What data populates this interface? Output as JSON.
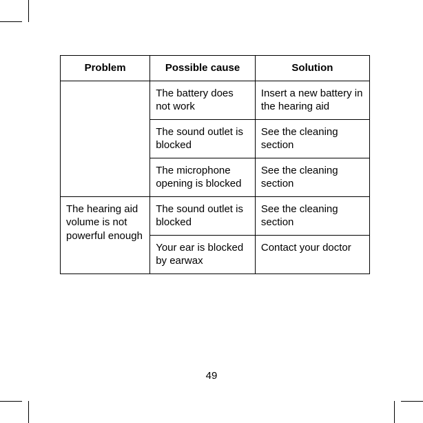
{
  "table": {
    "headers": {
      "problem": "Problem",
      "cause": "Possible cause",
      "solution": "Solution"
    },
    "rows": [
      {
        "problem": "",
        "cause": "The battery does not work",
        "solution": "Insert a new battery in the hearing aid"
      },
      {
        "cause": "The sound outlet is blocked",
        "solution": "See the cleaning section"
      },
      {
        "cause": "The microphone opening is blocked",
        "solution": "See the cleaning section"
      },
      {
        "problem": "The hearing aid volume is not powerful enough",
        "cause": "The sound outlet is blocked",
        "solution": "See the cleaning section"
      },
      {
        "cause": "Your ear is blocked by earwax",
        "solution": "Contact your doctor"
      }
    ]
  },
  "pageNumber": "49",
  "styling": {
    "border_color": "#000000",
    "background_color": "#ffffff",
    "font_size": 15,
    "header_font_weight": "bold"
  }
}
